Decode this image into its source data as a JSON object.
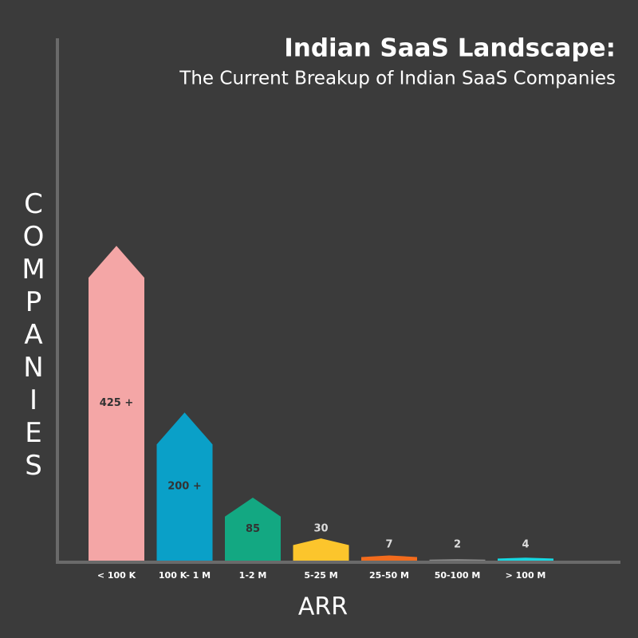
{
  "chart_data": {
    "type": "bar",
    "title": "Indian SaaS Landscape:",
    "subtitle": "The Current Breakup of Indian SaaS Companies",
    "x_label": "ARR",
    "y_label": "COMPANIES",
    "categories": [
      "< 100 K",
      "100 K- 1 M",
      "1-2 M",
      "5-25 M",
      "25-50 M",
      "50-100 M",
      "> 100 M"
    ],
    "values": [
      425,
      200,
      85,
      30,
      7,
      2,
      4
    ],
    "value_labels": [
      "425 +",
      "200 +",
      "85",
      "30",
      "7",
      "2",
      "4"
    ],
    "colors": [
      "#f4a6a6",
      "#0aa0c8",
      "#13a882",
      "#fcc52c",
      "#f26b1d",
      "#8a8a8a",
      "#17d6e0"
    ],
    "ylim": [
      0,
      450
    ]
  }
}
